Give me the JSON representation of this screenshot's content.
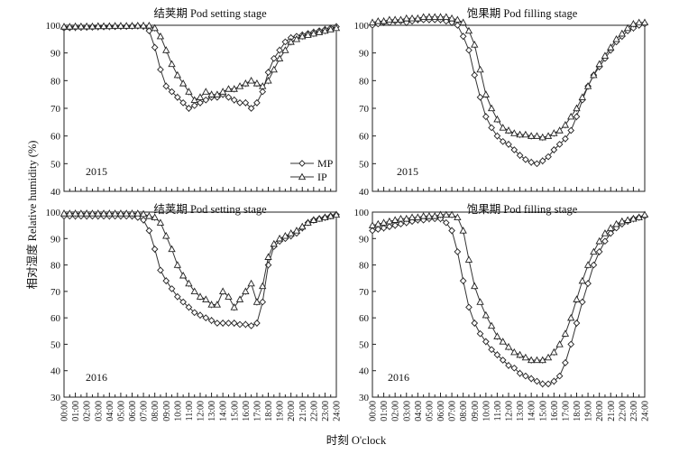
{
  "figure": {
    "ylabel": "相对湿度 Relative humidity (%)",
    "xlabel": "时刻 O'clock"
  },
  "legend": {
    "MP": "MP",
    "IP": "IP"
  },
  "chart_data": [
    {
      "type": "line",
      "title": "结荚期 Pod setting stage",
      "annotation": "2015",
      "ylim": [
        40,
        100
      ],
      "yticks": [
        40,
        50,
        60,
        70,
        80,
        90,
        100
      ],
      "x": [
        0,
        0.5,
        1,
        1.5,
        2,
        2.5,
        3,
        3.5,
        4,
        4.5,
        5,
        5.5,
        6,
        6.5,
        7,
        7.5,
        8,
        8.5,
        9,
        9.5,
        10,
        10.5,
        11,
        11.5,
        12,
        12.5,
        13,
        13.5,
        14,
        14.5,
        15,
        15.5,
        16,
        16.5,
        17,
        17.5,
        18,
        18.5,
        19,
        19.5,
        20,
        20.5,
        21,
        21.5,
        22,
        22.5,
        23,
        23.5,
        24
      ],
      "series": [
        {
          "name": "MP",
          "marker": "diamond",
          "values": [
            99,
            99.1,
            99.2,
            99.2,
            99.3,
            99.3,
            99.4,
            99.4,
            99.5,
            99.5,
            99.6,
            99.6,
            99.7,
            99.7,
            99.6,
            98,
            92,
            84,
            78,
            76,
            74,
            72,
            70,
            71,
            72,
            73,
            74,
            74,
            75,
            74,
            73,
            72,
            72,
            70,
            72,
            76,
            83,
            88,
            91,
            94,
            95.5,
            96,
            96.5,
            97,
            97.5,
            98,
            98.5,
            99,
            99.5
          ]
        },
        {
          "name": "IP",
          "marker": "triangle",
          "values": [
            99.5,
            99.5,
            99.6,
            99.6,
            99.6,
            99.6,
            99.7,
            99.7,
            99.7,
            99.8,
            99.8,
            99.8,
            99.8,
            99.9,
            99.9,
            99.9,
            99,
            96,
            91,
            86,
            82,
            79,
            76,
            73,
            74,
            76,
            75,
            75,
            76,
            77,
            77,
            78,
            79,
            80,
            79,
            78,
            80,
            84,
            88,
            91,
            94,
            95,
            96,
            96.5,
            97,
            97.5,
            98,
            98.5,
            99
          ]
        }
      ]
    },
    {
      "type": "line",
      "title": "饱果期 Pod filling stage",
      "annotation": "2015",
      "ylim": [
        40,
        100
      ],
      "yticks": [
        40,
        50,
        60,
        70,
        80,
        90,
        100
      ],
      "x": [
        0,
        0.5,
        1,
        1.5,
        2,
        2.5,
        3,
        3.5,
        4,
        4.5,
        5,
        5.5,
        6,
        6.5,
        7,
        7.5,
        8,
        8.5,
        9,
        9.5,
        10,
        10.5,
        11,
        11.5,
        12,
        12.5,
        13,
        13.5,
        14,
        14.5,
        15,
        15.5,
        16,
        16.5,
        17,
        17.5,
        18,
        18.5,
        19,
        19.5,
        20,
        20.5,
        21,
        21.5,
        22,
        22.5,
        23,
        23.5,
        24
      ],
      "series": [
        {
          "name": "MP",
          "marker": "diamond",
          "values": [
            100,
            100.5,
            101,
            101,
            101.5,
            101.5,
            101,
            101.5,
            102,
            102,
            102,
            102,
            102,
            101.5,
            101,
            100,
            96,
            91,
            82,
            74,
            67,
            63,
            60,
            58,
            57,
            55,
            53,
            51.5,
            50.5,
            50,
            51,
            52.5,
            55,
            57,
            59,
            62,
            67,
            73,
            78,
            82,
            85,
            88,
            91,
            94,
            96,
            98,
            99,
            100,
            100.5
          ]
        },
        {
          "name": "IP",
          "marker": "triangle",
          "values": [
            101,
            101.5,
            101.5,
            102,
            102,
            102,
            102.5,
            102.5,
            102.5,
            103,
            103,
            103,
            103,
            103,
            102.5,
            102,
            101,
            98,
            93,
            84,
            75,
            70,
            66,
            63,
            62,
            61,
            60.5,
            60.5,
            60,
            60,
            59.5,
            60,
            61,
            62,
            64,
            67,
            70,
            74,
            78,
            82,
            86,
            89,
            92,
            95,
            97,
            99,
            100.5,
            101,
            101
          ]
        }
      ]
    },
    {
      "type": "line",
      "title": "结荚期 Pod setting stage",
      "annotation": "2016",
      "ylim": [
        30,
        100
      ],
      "yticks": [
        30,
        40,
        50,
        60,
        70,
        80,
        90,
        100
      ],
      "x": [
        0,
        0.5,
        1,
        1.5,
        2,
        2.5,
        3,
        3.5,
        4,
        4.5,
        5,
        5.5,
        6,
        6.5,
        7,
        7.5,
        8,
        8.5,
        9,
        9.5,
        10,
        10.5,
        11,
        11.5,
        12,
        12.5,
        13,
        13.5,
        14,
        14.5,
        15,
        15.5,
        16,
        16.5,
        17,
        17.5,
        18,
        18.5,
        19,
        19.5,
        20,
        20.5,
        21,
        21.5,
        22,
        22.5,
        23,
        23.5,
        24
      ],
      "series": [
        {
          "name": "MP",
          "marker": "diamond",
          "values": [
            98.5,
            98.5,
            98.5,
            98.5,
            98.5,
            98.5,
            98.5,
            98.5,
            98.5,
            98.5,
            98.5,
            98.5,
            98.5,
            98,
            97,
            93,
            86,
            78,
            74,
            71,
            68,
            66,
            64,
            62,
            61,
            60,
            59,
            58,
            58,
            58,
            58,
            57.5,
            57.5,
            57,
            58,
            66,
            80,
            87,
            89,
            90,
            91,
            92,
            94,
            96,
            97,
            97.5,
            98,
            98.5,
            99
          ]
        },
        {
          "name": "IP",
          "marker": "triangle",
          "values": [
            99.5,
            99.5,
            99.5,
            99.5,
            99.5,
            99.5,
            99.5,
            99.5,
            99.5,
            99.5,
            99.5,
            99.5,
            99.5,
            99.5,
            99.3,
            98.5,
            98,
            96,
            91,
            86,
            80,
            76,
            73,
            70,
            68,
            67,
            65,
            65,
            70,
            68,
            64,
            67,
            70,
            73,
            66,
            72,
            83,
            88,
            90,
            91,
            92,
            93,
            94.5,
            96,
            97,
            97.5,
            98,
            98.5,
            99
          ]
        }
      ]
    },
    {
      "type": "line",
      "title": "饱果期 Pod filling stage",
      "annotation": "2016",
      "ylim": [
        30,
        100
      ],
      "yticks": [
        30,
        40,
        50,
        60,
        70,
        80,
        90,
        100
      ],
      "x": [
        0,
        0.5,
        1,
        1.5,
        2,
        2.5,
        3,
        3.5,
        4,
        4.5,
        5,
        5.5,
        6,
        6.5,
        7,
        7.5,
        8,
        8.5,
        9,
        9.5,
        10,
        10.5,
        11,
        11.5,
        12,
        12.5,
        13,
        13.5,
        14,
        14.5,
        15,
        15.5,
        16,
        16.5,
        17,
        17.5,
        18,
        18.5,
        19,
        19.5,
        20,
        20.5,
        21,
        21.5,
        22,
        22.5,
        23,
        23.5,
        24
      ],
      "series": [
        {
          "name": "MP",
          "marker": "diamond",
          "values": [
            93,
            93.5,
            94,
            94.5,
            95,
            95.5,
            96,
            96.5,
            97,
            97,
            97.5,
            97.5,
            97.5,
            96,
            93,
            85,
            74,
            64,
            58,
            54,
            51,
            48,
            46,
            44,
            42,
            41,
            39,
            38,
            37,
            36,
            35,
            35,
            36,
            38,
            43,
            50,
            58,
            66,
            73,
            80,
            85,
            89,
            92,
            94,
            95.5,
            96.5,
            97.5,
            98,
            98.5
          ]
        },
        {
          "name": "IP",
          "marker": "triangle",
          "values": [
            95,
            95.5,
            96,
            96.5,
            97,
            97.5,
            97.5,
            98,
            98,
            98.5,
            98.5,
            98.5,
            99,
            99,
            99,
            98,
            93,
            82,
            72,
            66,
            61,
            57,
            53,
            51,
            49,
            47,
            46,
            45,
            44,
            44,
            44,
            45,
            47,
            50,
            54,
            60,
            67,
            74,
            80,
            85,
            89,
            92,
            94,
            95.5,
            96.5,
            97,
            97.5,
            98,
            99
          ]
        }
      ]
    }
  ]
}
